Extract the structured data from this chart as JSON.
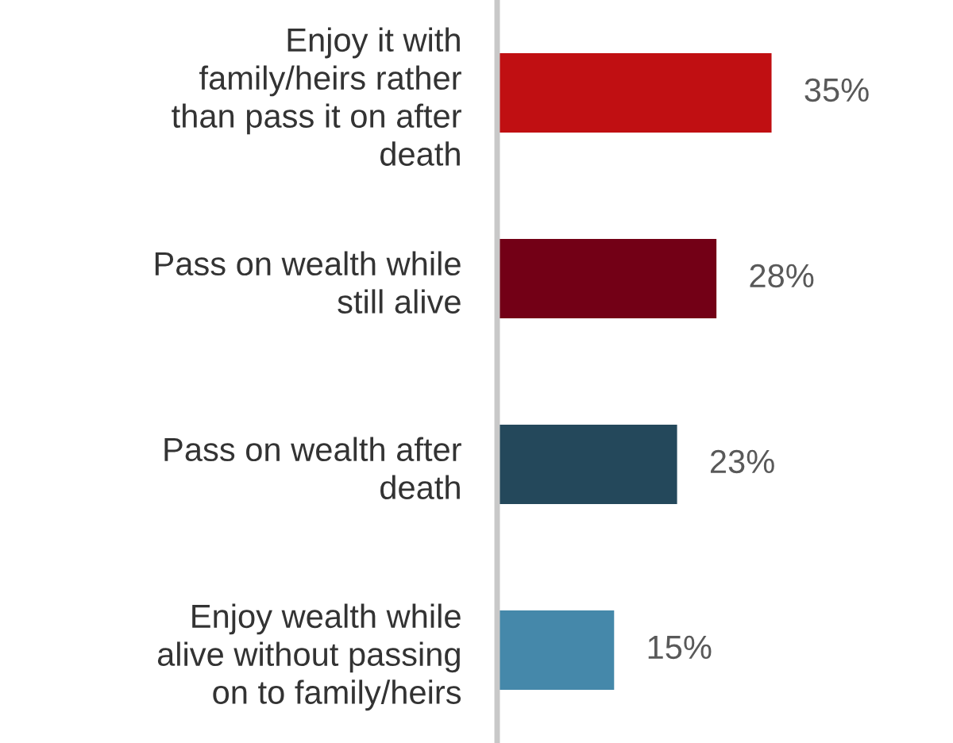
{
  "chart_data": {
    "type": "bar",
    "orientation": "horizontal",
    "categories": [
      "Enjoy it with family/heirs rather than pass it on after death",
      "Pass on wealth while still alive",
      "Pass on wealth after death",
      "Enjoy wealth while alive without passing on to family/heirs"
    ],
    "values": [
      35,
      28,
      23,
      15
    ],
    "colors": [
      "#c00f12",
      "#730016",
      "#24485b",
      "#4588aa"
    ],
    "value_labels": [
      "35%",
      "28%",
      "23%",
      "15%"
    ],
    "grid": false,
    "legend": false
  }
}
